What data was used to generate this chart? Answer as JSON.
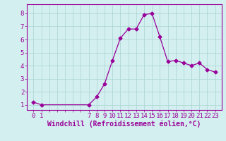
{
  "x": [
    0,
    1,
    7,
    8,
    9,
    10,
    11,
    12,
    13,
    14,
    15,
    16,
    17,
    18,
    19,
    20,
    21,
    22,
    23
  ],
  "y": [
    1.2,
    1.0,
    1.0,
    1.6,
    2.6,
    4.4,
    6.1,
    6.8,
    6.8,
    7.9,
    8.0,
    6.2,
    4.3,
    4.4,
    4.2,
    4.0,
    4.2,
    3.7,
    3.5
  ],
  "line_color": "#990099",
  "marker": "D",
  "marker_size": 2.5,
  "bg_color": "#d4efef",
  "grid_color": "#afd8d8",
  "xlabel": "Windchill (Refroidissement éolien,°C)",
  "xlabel_color": "#990099",
  "xlabel_fontsize": 7.0,
  "tick_color": "#990099",
  "tick_fontsize": 6.5,
  "ylim": [
    0.6,
    8.7
  ],
  "xlim": [
    -0.8,
    23.8
  ],
  "yticks": [
    1,
    2,
    3,
    4,
    5,
    6,
    7,
    8
  ],
  "xtick_labels": [
    "0",
    "1",
    "7",
    "8",
    "9",
    "10",
    "11",
    "12",
    "13",
    "14",
    "15",
    "16",
    "17",
    "18",
    "19",
    "20",
    "21",
    "22",
    "23"
  ],
  "xtick_positions": [
    0,
    1,
    7,
    8,
    9,
    10,
    11,
    12,
    13,
    14,
    15,
    16,
    17,
    18,
    19,
    20,
    21,
    22,
    23
  ],
  "grid_xticks": [
    0,
    1,
    2,
    3,
    4,
    5,
    6,
    7,
    8,
    9,
    10,
    11,
    12,
    13,
    14,
    15,
    16,
    17,
    18,
    19,
    20,
    21,
    22,
    23
  ]
}
